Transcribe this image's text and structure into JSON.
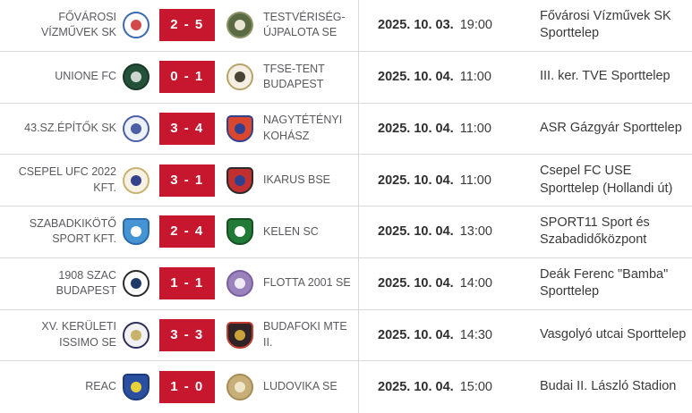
{
  "colors": {
    "score_badge_bg": "#c6172e",
    "score_badge_text": "#ffffff",
    "divider": "#d9d9d9",
    "team_name_text": "#5a5a5e",
    "detail_text": "#3a3a3c"
  },
  "matches": [
    {
      "home": "FŐVÁROSI VÍZMŰVEK SK",
      "away": "TESTVÉRISÉG-ÚJPALOTA SE",
      "score": "2 - 5",
      "date": "2025. 10. 03.",
      "time": "19:00",
      "venue": "Fővárosi Vízművek SK Sporttelep",
      "home_logo": {
        "shape": "circle",
        "bg": "#ffffff",
        "border": "#3a6ab0",
        "inner": "#d24a4a"
      },
      "away_logo": {
        "shape": "circle",
        "bg": "#5a6b44",
        "border": "#8c9468",
        "inner": "#e9e7d4"
      }
    },
    {
      "home": "UNIONE FC",
      "away": "TFSE-TENT BUDAPEST",
      "score": "0 - 1",
      "date": "2025. 10. 04.",
      "time": "11:00",
      "venue": "III. ker. TVE Sporttelep",
      "home_logo": {
        "shape": "circle",
        "bg": "#24513a",
        "border": "#173827",
        "inner": "#cfd6cf"
      },
      "away_logo": {
        "shape": "circle",
        "bg": "#f4efe2",
        "border": "#b8a468",
        "inner": "#4a4436"
      }
    },
    {
      "home": "43.SZ.ÉPÍTŐK SK",
      "away": "NAGYTÉTÉNYI KOHÁSZ",
      "score": "3 - 4",
      "date": "2025. 10. 04.",
      "time": "11:00",
      "venue": "ASR Gázgyár Sporttelep",
      "home_logo": {
        "shape": "circle",
        "bg": "#eef1f8",
        "border": "#4a5fa5",
        "inner": "#4a5fa5"
      },
      "away_logo": {
        "shape": "shield",
        "bg": "#d9472e",
        "border": "#32418f",
        "inner": "#32418f"
      }
    },
    {
      "home": "CSEPEL UFC 2022 KFT.",
      "away": "IKARUS BSE",
      "score": "3 - 1",
      "date": "2025. 10. 04.",
      "time": "11:00",
      "venue": "Csepel FC USE Sporttelep (Hollandi út)",
      "home_logo": {
        "shape": "circle",
        "bg": "#f6f1e2",
        "border": "#c7b26e",
        "inner": "#35418c"
      },
      "away_logo": {
        "shape": "shield",
        "bg": "#c03030",
        "border": "#2a2a2a",
        "inner": "#31408e"
      }
    },
    {
      "home": "SZABADKIKÖTŐ SPORT KFT.",
      "away": "KELEN SC",
      "score": "2 - 4",
      "date": "2025. 10. 04.",
      "time": "13:00",
      "venue": "SPORT11 Sport és Szabadidőközpont",
      "home_logo": {
        "shape": "shield",
        "bg": "#4694d4",
        "border": "#2a6aa8",
        "inner": "#ffffff"
      },
      "away_logo": {
        "shape": "shield",
        "bg": "#217a35",
        "border": "#145022",
        "inner": "#ffffff"
      }
    },
    {
      "home": "1908 SZAC BUDAPEST",
      "away": "FLOTTA 2001 SE",
      "score": "1 - 1",
      "date": "2025. 10. 04.",
      "time": "14:00",
      "venue": "Deák Ferenc \"Bamba\" Sporttelep",
      "home_logo": {
        "shape": "circle",
        "bg": "#ffffff",
        "border": "#2b2b2b",
        "inner": "#1d3a69"
      },
      "away_logo": {
        "shape": "circle",
        "bg": "#9a82bd",
        "border": "#7a5fa0",
        "inner": "#efeaf5"
      }
    },
    {
      "home": "XV. KERÜLETI ISSIMO SE",
      "away": "BUDAFOKI MTE II.",
      "score": "3 - 3",
      "date": "2025. 10. 04.",
      "time": "14:30",
      "venue": "Vasgolyó utcai Sporttelep",
      "home_logo": {
        "shape": "circle",
        "bg": "#f2f2f5",
        "border": "#2e2e5c",
        "inner": "#c9b26a"
      },
      "away_logo": {
        "shape": "shield",
        "bg": "#2e2428",
        "border": "#c13a30",
        "inner": "#c9a23a"
      }
    },
    {
      "home": "REAC",
      "away": "LUDOVIKA SE",
      "score": "1 - 0",
      "date": "2025. 10. 04.",
      "time": "15:00",
      "venue": "Budai II. László Stadion",
      "home_logo": {
        "shape": "shield",
        "bg": "#2b4fa0",
        "border": "#1d3a7a",
        "inner": "#e8d23a"
      },
      "away_logo": {
        "shape": "circle",
        "bg": "#c8ae78",
        "border": "#a68c55",
        "inner": "#efe5c8"
      }
    }
  ]
}
